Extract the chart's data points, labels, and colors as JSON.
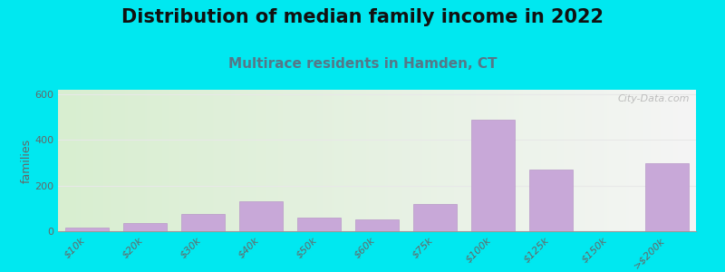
{
  "title": "Distribution of median family income in 2022",
  "subtitle": "Multirace residents in Hamden, CT",
  "ylabel": "families",
  "categories": [
    "$10k",
    "$20k",
    "$30k",
    "$40k",
    "$50k",
    "$60k",
    "$75k",
    "$100k",
    "$125k",
    "$150k",
    ">$200k"
  ],
  "values": [
    15,
    35,
    75,
    130,
    60,
    50,
    120,
    490,
    270,
    0,
    300
  ],
  "bar_color": "#c8a8d8",
  "bar_edge_color": "#b898c8",
  "background_outer": "#00e8f0",
  "ylim": [
    0,
    620
  ],
  "yticks": [
    0,
    200,
    400,
    600
  ],
  "title_fontsize": 15,
  "title_fontweight": "bold",
  "title_color": "#111111",
  "subtitle_fontsize": 11,
  "subtitle_color": "#557788",
  "subtitle_fontweight": "bold",
  "watermark": "City-Data.com",
  "tick_label_color": "#666666",
  "tick_label_fontsize": 8,
  "ylabel_fontsize": 9,
  "ylabel_color": "#666666",
  "grid_color": "#e8e8e8",
  "bar_width": 0.75
}
